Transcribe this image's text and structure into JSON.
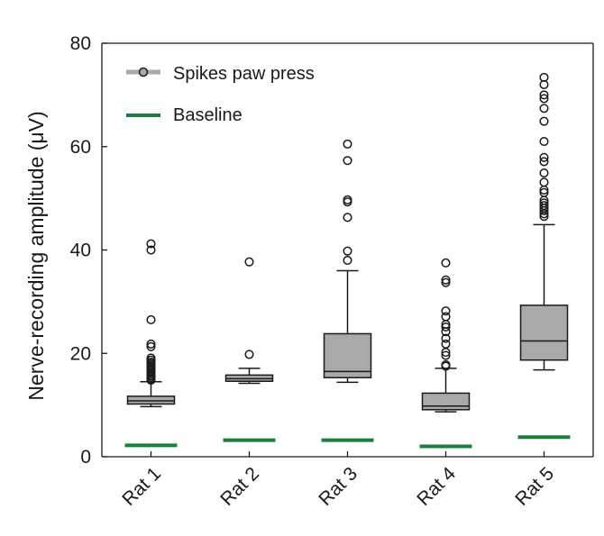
{
  "chart_data": {
    "type": "box",
    "title": "",
    "xlabel": "",
    "ylabel": "Nerve-recording amplitude (μV)",
    "ylim": [
      0,
      80
    ],
    "yticks": [
      0,
      20,
      40,
      60,
      80
    ],
    "categories": [
      "Rat 1",
      "Rat 2",
      "Rat 3",
      "Rat 4",
      "Rat 5"
    ],
    "grid": false,
    "legend": {
      "placement": "top-left",
      "entries": [
        {
          "label": "Spikes paw press",
          "style": "box-with-circle-marker",
          "color": "#a9a9a9"
        },
        {
          "label": "Baseline",
          "style": "line",
          "color": "#1a7f3e"
        }
      ]
    },
    "series": [
      {
        "name": "Spikes paw press",
        "color": "#a9a9a9",
        "boxes": [
          {
            "category": "Rat 1",
            "whisker_low": 9.7,
            "q1": 10.2,
            "median": 10.8,
            "q3": 11.7,
            "whisker_high": 14.5,
            "outliers": [
              14.8,
              15.0,
              15.3,
              15.6,
              15.9,
              16.2,
              16.5,
              16.8,
              17.1,
              17.4,
              17.7,
              18.0,
              18.3,
              18.7,
              19.1,
              21.3,
              21.8,
              26.5,
              40.0,
              41.2
            ]
          },
          {
            "category": "Rat 2",
            "whisker_low": 14.2,
            "q1": 14.6,
            "median": 15.1,
            "q3": 15.8,
            "whisker_high": 17.1,
            "outliers": [
              19.8,
              37.7
            ]
          },
          {
            "category": "Rat 3",
            "whisker_low": 14.4,
            "q1": 15.3,
            "median": 16.5,
            "q3": 23.8,
            "whisker_high": 36.0,
            "outliers": [
              38.0,
              39.8,
              46.3,
              49.3,
              49.7,
              57.3,
              60.5
            ]
          },
          {
            "category": "Rat 4",
            "whisker_low": 8.7,
            "q1": 9.1,
            "median": 9.8,
            "q3": 12.3,
            "whisker_high": 17.1,
            "outliers": [
              17.5,
              17.8,
              19.6,
              20.2,
              21.8,
              22.9,
              24.2,
              25.1,
              25.6,
              27.1,
              28.2,
              33.7,
              34.2,
              37.5
            ]
          },
          {
            "category": "Rat 5",
            "whisker_low": 16.8,
            "q1": 18.7,
            "median": 22.4,
            "q3": 29.3,
            "whisker_high": 44.9,
            "outliers": [
              46.5,
              47.0,
              47.6,
              48.1,
              48.6,
              49.1,
              49.6,
              51.1,
              51.6,
              53.1,
              54.9,
              57.1,
              57.9,
              61.0,
              64.9,
              67.4,
              69.3,
              70.0,
              72.0,
              73.4
            ]
          }
        ]
      },
      {
        "name": "Baseline",
        "color": "#1a7f3e",
        "values": [
          2.2,
          3.2,
          3.2,
          2.0,
          3.8
        ]
      }
    ]
  }
}
